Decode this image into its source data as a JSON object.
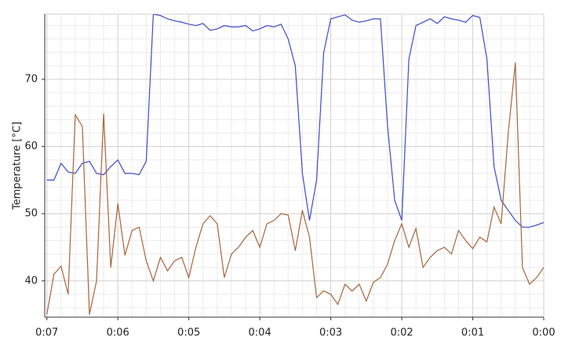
{
  "chart_data": {
    "type": "line",
    "y_label": "Temperature [°C]",
    "x": [
      7,
      6.9,
      6.8,
      6.7,
      6.6,
      6.5,
      6.4,
      6.3,
      6.2,
      6.1,
      6,
      5.9,
      5.8,
      5.7,
      5.6,
      5.5,
      5.4,
      5.3,
      5.2,
      5.1,
      5,
      4.9,
      4.8,
      4.7,
      4.6,
      4.5,
      4.4,
      4.3,
      4.2,
      4.1,
      4,
      3.9,
      3.8,
      3.7,
      3.6,
      3.5,
      3.4,
      3.3,
      3.2,
      3.1,
      3,
      2.9,
      2.8,
      2.7,
      2.6,
      2.5,
      2.4,
      2.3,
      2.2,
      2.1,
      2,
      1.9,
      1.8,
      1.7,
      1.6,
      1.5,
      1.4,
      1.3,
      1.2,
      1.1,
      1,
      0.9,
      0.8,
      0.7,
      0.6,
      0.5,
      0.4,
      0.3,
      0.2,
      0.1,
      0
    ],
    "series": [
      {
        "color": "#3b4cc8",
        "values": [
          55,
          55,
          57.5,
          56.2,
          56,
          57.5,
          57.8,
          56,
          55.8,
          57,
          58,
          56,
          56,
          55.8,
          57.8,
          79.7,
          79.5,
          79,
          78.7,
          78.5,
          78.2,
          78,
          78.3,
          77.3,
          77.5,
          78,
          77.8,
          77.8,
          78,
          77.2,
          77.5,
          78,
          77.8,
          78.2,
          76,
          72,
          56,
          49,
          55,
          74,
          79,
          79.3,
          79.6,
          78.8,
          78.5,
          78.7,
          79,
          79,
          63,
          52,
          49,
          73,
          78,
          78.5,
          79,
          78.3,
          79.3,
          79,
          78.8,
          78.5,
          79.5,
          79.2,
          73,
          57,
          52,
          50.5,
          49,
          48,
          48,
          48.3,
          48.7
        ]
      },
      {
        "color": "#a8653a",
        "values": [
          35,
          41,
          42.2,
          38,
          64.7,
          63,
          35,
          40,
          64.9,
          42,
          51.5,
          43.8,
          47.5,
          48,
          43,
          40,
          43.5,
          41.5,
          43,
          43.5,
          40.5,
          45,
          48.5,
          49.7,
          48.5,
          40.5,
          44,
          45,
          46.5,
          47.5,
          45,
          48.5,
          49,
          50,
          49.8,
          44.5,
          50.5,
          46.5,
          37.5,
          38.5,
          38,
          36.5,
          39.5,
          38.5,
          39.5,
          37,
          39.8,
          40.5,
          42.5,
          46,
          48.5,
          45,
          47.8,
          42,
          43.5,
          44.5,
          45,
          44,
          47.5,
          46,
          44.8,
          46.5,
          45.8,
          51,
          48.5,
          62,
          72.5,
          42,
          39.5,
          40.5,
          42
        ]
      }
    ],
    "xlim": [
      7.03,
      0
    ],
    "xticks": [
      {
        "value": 7,
        "label": "0:07"
      },
      {
        "value": 6,
        "label": "0:06"
      },
      {
        "value": 5,
        "label": "0:05"
      },
      {
        "value": 4,
        "label": "0:04"
      },
      {
        "value": 3,
        "label": "0:03"
      },
      {
        "value": 2,
        "label": "0:02"
      },
      {
        "value": 1,
        "label": "0:01"
      },
      {
        "value": 0,
        "label": "0:00"
      }
    ],
    "ylim": [
      34.6,
      79.7
    ],
    "yticks": [
      40,
      50,
      60,
      70
    ],
    "grid": true,
    "minor_grid": true
  }
}
